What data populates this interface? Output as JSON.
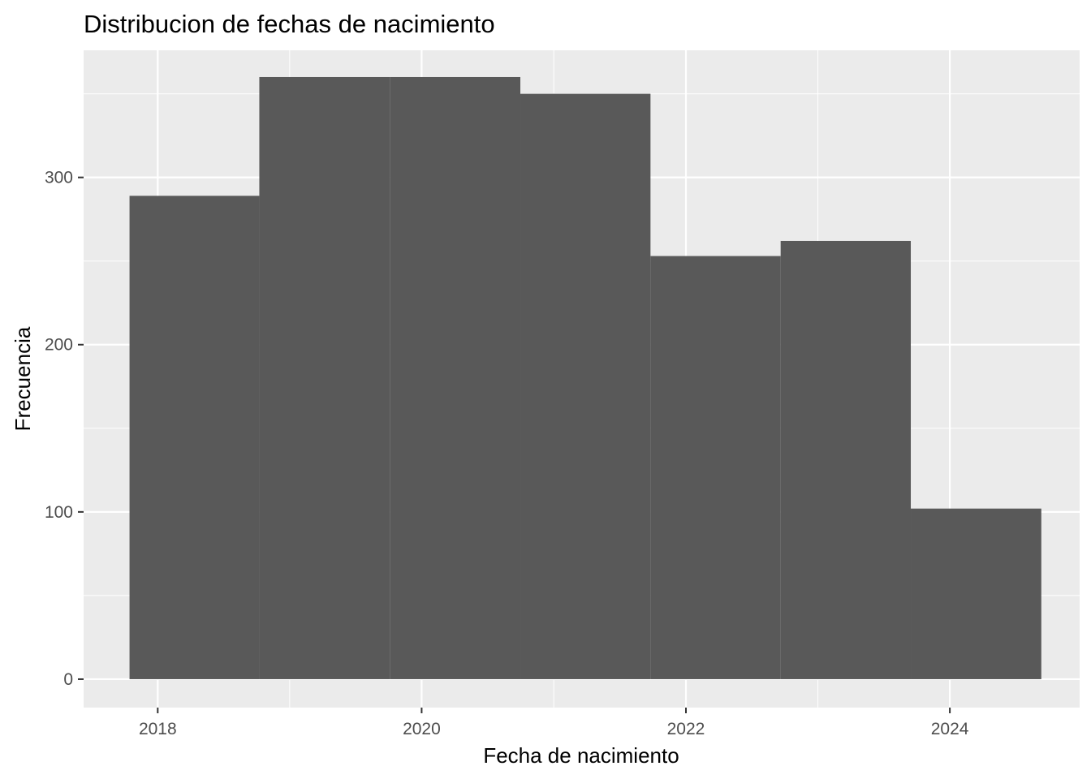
{
  "chart_data": {
    "type": "bar",
    "subtype": "histogram",
    "title": "Distribucion de fechas de nacimiento",
    "xlabel": "Fecha de nacimiento",
    "ylabel": "Frecuencia",
    "x_ticks": [
      "2018",
      "2020",
      "2022",
      "2024"
    ],
    "y_ticks": [
      "0",
      "100",
      "200",
      "300"
    ],
    "xlim": [
      "2017-06-10",
      "2024-12-25"
    ],
    "ylim": [
      -17,
      376
    ],
    "bins": [
      {
        "start": "2017-10-15",
        "end": "2018-10-09",
        "count": 289
      },
      {
        "start": "2018-10-09",
        "end": "2019-10-05",
        "count": 360
      },
      {
        "start": "2019-10-05",
        "end": "2020-09-30",
        "count": 360
      },
      {
        "start": "2020-09-30",
        "end": "2021-09-25",
        "count": 350
      },
      {
        "start": "2021-09-25",
        "end": "2022-09-20",
        "count": 253
      },
      {
        "start": "2022-09-20",
        "end": "2023-09-15",
        "count": 262
      },
      {
        "start": "2023-09-15",
        "end": "2024-09-10",
        "count": 102
      }
    ],
    "grid": true,
    "panel_background": "#ebebeb",
    "grid_color": "#ffffff",
    "bar_color": "#595959",
    "tick_color": "#333333"
  }
}
